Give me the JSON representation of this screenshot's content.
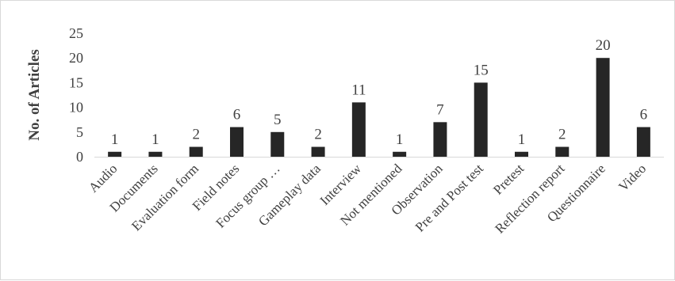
{
  "chart_data": {
    "type": "bar",
    "title": "",
    "xlabel": "",
    "ylabel": "No. of Articles",
    "ylim": [
      0,
      25
    ],
    "yticks": [
      0,
      5,
      10,
      15,
      20,
      25
    ],
    "grid": false,
    "legend": "none",
    "bar_color": "#262626",
    "categories": [
      "Audio",
      "Documents",
      "Evaluation form",
      "Field notes",
      "Focus group …",
      "Gameplay data",
      "Interview",
      "Not mentioned",
      "Observation",
      "Pre and Post test",
      "Pretest",
      "Reflection report",
      "Questionnaire",
      "Video"
    ],
    "values": [
      1,
      1,
      2,
      6,
      5,
      2,
      11,
      1,
      7,
      15,
      1,
      2,
      20,
      6
    ]
  }
}
